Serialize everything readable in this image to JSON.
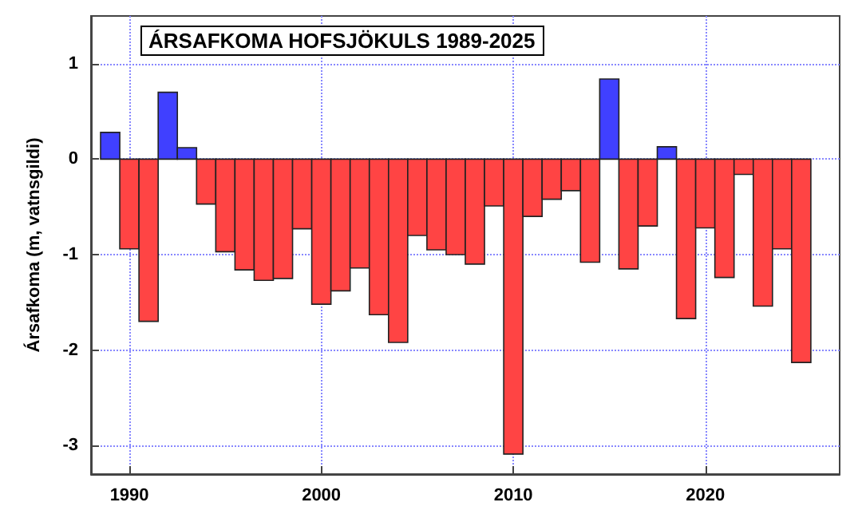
{
  "chart_data": {
    "type": "bar",
    "title": "ÁRSAFKOMA HOFSJÖKULS 1989-2025",
    "ylabel": "Ársafkoma (m, vatnsgildi)",
    "x": [
      1989,
      1990,
      1991,
      1992,
      1993,
      1994,
      1995,
      1996,
      1997,
      1998,
      1999,
      2000,
      2001,
      2002,
      2003,
      2004,
      2005,
      2006,
      2007,
      2008,
      2009,
      2010,
      2011,
      2012,
      2013,
      2014,
      2015,
      2016,
      2017,
      2018,
      2019,
      2020,
      2021,
      2022,
      2023,
      2024,
      2025
    ],
    "values": [
      0.28,
      -0.94,
      -1.7,
      0.7,
      0.12,
      -0.47,
      -0.97,
      -1.16,
      -1.27,
      -1.25,
      -0.73,
      -1.52,
      -1.38,
      -1.14,
      -1.63,
      -1.92,
      -0.8,
      -0.95,
      -1.0,
      -1.1,
      -0.49,
      -3.09,
      -0.6,
      -0.42,
      -0.33,
      -1.08,
      0.84,
      -1.15,
      -0.7,
      0.13,
      -1.67,
      -0.72,
      -1.24,
      -0.16,
      -1.54,
      -0.94,
      -2.13
    ],
    "colors": [
      "#4040ff",
      "#ff4444",
      "#ff4444",
      "#4040ff",
      "#4040ff",
      "#ff4444",
      "#ff4444",
      "#ff4444",
      "#ff4444",
      "#ff4444",
      "#ff4444",
      "#ff4444",
      "#ff4444",
      "#ff4444",
      "#ff4444",
      "#ff4444",
      "#ff4444",
      "#ff4444",
      "#ff4444",
      "#ff4444",
      "#ff4444",
      "#ff4444",
      "#ff4444",
      "#ff4444",
      "#ff4444",
      "#ff4444",
      "#4040ff",
      "#ff4444",
      "#ff4444",
      "#4040ff",
      "#ff4444",
      "#ff4444",
      "#ff4444",
      "#ff4444",
      "#ff4444",
      "#ff4444",
      "#ff4444"
    ],
    "xlim": [
      1988,
      2027
    ],
    "xticks": [
      1990,
      2000,
      2010,
      2020
    ],
    "ylim": [
      -3.3,
      1.5
    ],
    "yticks": [
      -3,
      -2,
      -1,
      0,
      1
    ],
    "grid": true
  }
}
